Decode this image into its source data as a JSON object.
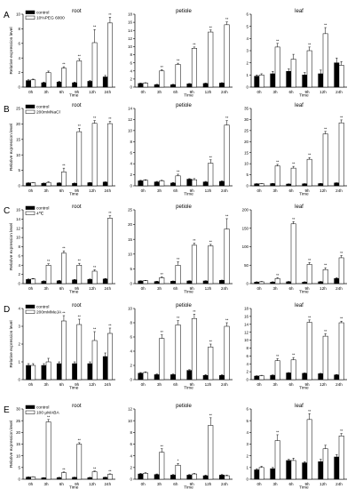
{
  "figure": {
    "ylabel": "Relative expression level",
    "xlabel": "Time",
    "categories": [
      "0h",
      "3h",
      "6h",
      "9h",
      "12h",
      "24h"
    ]
  },
  "chart_data": [
    {
      "type": "bar",
      "row_label": "A",
      "title": "root",
      "ylim": [
        0,
        10
      ],
      "yticks": [
        0,
        2,
        4,
        6,
        8,
        10
      ],
      "legend": [
        "control",
        "10%PEG 6000"
      ],
      "categories": [
        "0h",
        "3h",
        "6h",
        "9h",
        "12h",
        "24h"
      ],
      "series": [
        {
          "name": "control",
          "values": [
            0.9,
            0.6,
            0.7,
            0.6,
            0.8,
            1.4
          ],
          "errors": [
            0.1,
            0.1,
            0.1,
            0.1,
            0.1,
            0.2
          ]
        },
        {
          "name": "10%PEG 6000",
          "values": [
            1.0,
            2.0,
            2.6,
            3.6,
            6.1,
            8.8
          ],
          "errors": [
            0.1,
            0.2,
            0.2,
            0.3,
            1.8,
            0.8
          ]
        }
      ],
      "annotations": [
        "",
        "",
        "**",
        "**",
        "**",
        "**"
      ]
    },
    {
      "type": "bar",
      "row_label": "A",
      "title": "petiole",
      "ylim": [
        0,
        18
      ],
      "yticks": [
        0,
        2,
        4,
        6,
        8,
        10,
        12,
        14,
        16,
        18
      ],
      "categories": [
        "0h",
        "3h",
        "6h",
        "9h",
        "12h",
        "24h"
      ],
      "series": [
        {
          "name": "control",
          "values": [
            0.9,
            0.6,
            0.6,
            0.8,
            0.9,
            1.0
          ],
          "errors": [
            0.1,
            0.1,
            0.1,
            0.1,
            0.1,
            0.1
          ]
        },
        {
          "name": "10%PEG 6000",
          "values": [
            1.0,
            4.0,
            5.6,
            9.6,
            13.6,
            15.4
          ],
          "errors": [
            0.1,
            0.3,
            0.3,
            0.3,
            0.5,
            0.7
          ]
        }
      ],
      "annotations": [
        "",
        "**",
        "**",
        "**",
        "**",
        "**"
      ]
    },
    {
      "type": "bar",
      "row_label": "A",
      "title": "leaf",
      "ylim": [
        0,
        6
      ],
      "yticks": [
        0,
        1,
        2,
        3,
        4,
        5,
        6
      ],
      "categories": [
        "0h",
        "3h",
        "6h",
        "9h",
        "12h",
        "24h"
      ],
      "series": [
        {
          "name": "control",
          "values": [
            0.9,
            1.1,
            1.3,
            1.0,
            1.1,
            2.0
          ],
          "errors": [
            0.1,
            0.2,
            0.2,
            0.2,
            0.3,
            0.4
          ]
        },
        {
          "name": "10%PEG 6000",
          "values": [
            1.0,
            3.3,
            2.3,
            3.0,
            4.4,
            1.8
          ],
          "errors": [
            0.1,
            0.3,
            0.4,
            0.3,
            0.5,
            0.3
          ]
        }
      ],
      "annotations": [
        "",
        "**",
        "",
        "**",
        "**",
        ""
      ]
    },
    {
      "type": "bar",
      "row_label": "B",
      "title": "root",
      "ylim": [
        0,
        25
      ],
      "yticks": [
        0,
        5,
        10,
        15,
        20,
        25
      ],
      "legend": [
        "control",
        "200mMNaCl"
      ],
      "categories": [
        "0h",
        "3h",
        "6h",
        "9h",
        "12h",
        "24h"
      ],
      "series": [
        {
          "name": "control",
          "values": [
            0.9,
            0.8,
            0.9,
            0.8,
            1.0,
            1.2
          ],
          "errors": [
            0.1,
            0.1,
            0.1,
            0.1,
            0.1,
            0.1
          ]
        },
        {
          "name": "200mMNaCl",
          "values": [
            1.0,
            1.1,
            4.5,
            17.5,
            20.2,
            20.1
          ],
          "errors": [
            0.1,
            0.2,
            1.2,
            1.1,
            0.9,
            0.7
          ]
        }
      ],
      "annotations": [
        "",
        "",
        "**",
        "**",
        "**",
        "**"
      ]
    },
    {
      "type": "bar",
      "row_label": "B",
      "title": "petiole",
      "ylim": [
        0,
        14
      ],
      "yticks": [
        0,
        2,
        4,
        6,
        8,
        10,
        12,
        14
      ],
      "categories": [
        "0h",
        "3h",
        "6h",
        "9h",
        "12h",
        "24h"
      ],
      "series": [
        {
          "name": "control",
          "values": [
            0.9,
            0.7,
            0.5,
            1.2,
            0.7,
            0.8
          ],
          "errors": [
            0.1,
            0.1,
            0.1,
            0.1,
            0.1,
            0.1
          ]
        },
        {
          "name": "200mMNaCl",
          "values": [
            1.0,
            0.9,
            1.8,
            1.1,
            4.1,
            11.0
          ],
          "errors": [
            0.1,
            0.1,
            0.3,
            0.2,
            0.6,
            0.8
          ]
        }
      ],
      "annotations": [
        "",
        "",
        "**",
        "",
        "**",
        "**"
      ]
    },
    {
      "type": "bar",
      "row_label": "B",
      "title": "leaf",
      "ylim": [
        0,
        35
      ],
      "yticks": [
        0,
        5,
        10,
        15,
        20,
        25,
        30,
        35
      ],
      "categories": [
        "0h",
        "3h",
        "6h",
        "9h",
        "12h",
        "24h"
      ],
      "series": [
        {
          "name": "control",
          "values": [
            0.9,
            1.0,
            0.8,
            0.9,
            1.0,
            1.3
          ],
          "errors": [
            0.1,
            0.1,
            0.1,
            0.1,
            0.1,
            0.1
          ]
        },
        {
          "name": "200mMNaCl",
          "values": [
            1.0,
            9.0,
            8.0,
            12.0,
            23.5,
            28.5
          ],
          "errors": [
            0.1,
            0.7,
            0.8,
            0.8,
            1.1,
            1.3
          ]
        }
      ],
      "annotations": [
        "",
        "**",
        "**",
        "**",
        "**",
        "**"
      ]
    },
    {
      "type": "bar",
      "row_label": "C",
      "title": "root",
      "ylim": [
        0,
        16
      ],
      "yticks": [
        0,
        2,
        4,
        6,
        8,
        10,
        12,
        14,
        16
      ],
      "legend": [
        "control",
        "4℃"
      ],
      "categories": [
        "0h",
        "3h",
        "6h",
        "9h",
        "12h",
        "24h"
      ],
      "series": [
        {
          "name": "control",
          "values": [
            0.9,
            0.5,
            0.6,
            0.8,
            0.9,
            1.0
          ],
          "errors": [
            0.1,
            0.1,
            0.1,
            0.1,
            0.1,
            0.1
          ]
        },
        {
          "name": "4℃",
          "values": [
            1.0,
            4.0,
            6.6,
            4.0,
            2.7,
            14.2
          ],
          "errors": [
            0.1,
            0.3,
            0.5,
            0.4,
            0.3,
            0.5
          ]
        }
      ],
      "annotations": [
        "",
        "**",
        "**",
        "**",
        "**",
        "**"
      ]
    },
    {
      "type": "bar",
      "row_label": "C",
      "title": "petiole",
      "ylim": [
        0,
        25
      ],
      "yticks": [
        0,
        5,
        10,
        15,
        20,
        25
      ],
      "categories": [
        "0h",
        "3h",
        "6h",
        "9h",
        "12h",
        "24h"
      ],
      "series": [
        {
          "name": "control",
          "values": [
            0.9,
            0.7,
            0.8,
            0.9,
            0.9,
            1.1
          ],
          "errors": [
            0.1,
            0.1,
            0.1,
            0.1,
            0.1,
            0.1
          ]
        },
        {
          "name": "4℃",
          "values": [
            1.0,
            2.0,
            6.2,
            13.0,
            12.8,
            18.5
          ],
          "errors": [
            0.1,
            0.3,
            1.2,
            0.7,
            0.5,
            3.5
          ]
        }
      ],
      "annotations": [
        "",
        "**",
        "**",
        "**",
        "**",
        "**"
      ]
    },
    {
      "type": "bar",
      "row_label": "C",
      "title": "leaf",
      "ylim": [
        0,
        200
      ],
      "yticks": [
        0,
        50,
        100,
        150,
        200
      ],
      "categories": [
        "0h",
        "3h",
        "6h",
        "9h",
        "12h",
        "24h"
      ],
      "series": [
        {
          "name": "control",
          "values": [
            4,
            4,
            5,
            4,
            5,
            14
          ],
          "errors": [
            1,
            1,
            1,
            1,
            1,
            2
          ]
        },
        {
          "name": "4℃",
          "values": [
            5,
            14,
            162,
            52,
            38,
            70
          ],
          "errors": [
            1,
            2,
            6,
            5,
            5,
            6
          ]
        }
      ],
      "annotations": [
        "",
        "**",
        "**",
        "**",
        "**",
        "**"
      ]
    },
    {
      "type": "bar",
      "row_label": "D",
      "title": "root",
      "ylim": [
        0,
        4
      ],
      "yticks": [
        0,
        1,
        2,
        3,
        4
      ],
      "legend": [
        "control",
        "200mMMeJA"
      ],
      "categories": [
        "0h",
        "3h",
        "6h",
        "9h",
        "12h",
        "24h"
      ],
      "series": [
        {
          "name": "control",
          "values": [
            0.8,
            0.8,
            0.9,
            0.9,
            0.9,
            1.3
          ],
          "errors": [
            0.1,
            0.1,
            0.1,
            0.1,
            0.1,
            0.2
          ]
        },
        {
          "name": "200mMMeJA",
          "values": [
            0.8,
            1.0,
            3.3,
            3.1,
            2.2,
            2.6
          ],
          "errors": [
            0.1,
            0.2,
            0.3,
            0.3,
            0.5,
            0.3
          ]
        }
      ],
      "annotations": [
        "",
        "",
        "**",
        "**",
        "**",
        "**"
      ]
    },
    {
      "type": "bar",
      "row_label": "D",
      "title": "petiole",
      "ylim": [
        0,
        10
      ],
      "yticks": [
        0,
        2,
        4,
        6,
        8,
        10
      ],
      "categories": [
        "0h",
        "3h",
        "6h",
        "9h",
        "12h",
        "24h"
      ],
      "series": [
        {
          "name": "control",
          "values": [
            0.9,
            0.7,
            0.7,
            1.3,
            0.6,
            0.6
          ],
          "errors": [
            0.1,
            0.1,
            0.1,
            0.1,
            0.1,
            0.1
          ]
        },
        {
          "name": "200mMMeJA",
          "values": [
            1.0,
            5.8,
            7.7,
            8.6,
            4.6,
            7.5
          ],
          "errors": [
            0.1,
            0.5,
            0.6,
            0.6,
            0.4,
            0.5
          ]
        }
      ],
      "annotations": [
        "",
        "**",
        "**",
        "**",
        "**",
        "**"
      ]
    },
    {
      "type": "bar",
      "row_label": "D",
      "title": "leaf",
      "ylim": [
        0,
        18
      ],
      "yticks": [
        0,
        2,
        4,
        6,
        8,
        10,
        12,
        14,
        16,
        18
      ],
      "categories": [
        "0h",
        "3h",
        "6h",
        "9h",
        "12h",
        "24h"
      ],
      "series": [
        {
          "name": "control",
          "values": [
            0.9,
            1.1,
            1.7,
            1.6,
            1.5,
            1.2
          ],
          "errors": [
            0.1,
            0.1,
            0.1,
            0.1,
            0.1,
            0.1
          ]
        },
        {
          "name": "200mMMeJA",
          "values": [
            1.0,
            4.8,
            5.0,
            14.5,
            11.0,
            14.4
          ],
          "errors": [
            0.1,
            0.5,
            0.6,
            0.6,
            0.6,
            0.4
          ]
        }
      ],
      "annotations": [
        "",
        "**",
        "**",
        "**",
        "**",
        "**"
      ]
    },
    {
      "type": "bar",
      "row_label": "E",
      "title": "root",
      "ylim": [
        0,
        30
      ],
      "yticks": [
        0,
        5,
        10,
        15,
        20,
        25,
        30
      ],
      "legend": [
        "control",
        "100 μMABA"
      ],
      "categories": [
        "0h",
        "3h",
        "6h",
        "9h",
        "12h",
        "24h"
      ],
      "series": [
        {
          "name": "control",
          "values": [
            0.9,
            0.6,
            0.7,
            0.8,
            0.7,
            0.8
          ],
          "errors": [
            0.1,
            0.1,
            0.1,
            0.1,
            0.1,
            0.1
          ]
        },
        {
          "name": "100 μMABA",
          "values": [
            1.0,
            24.5,
            2.8,
            15.0,
            3.2,
            2.1
          ],
          "errors": [
            0.1,
            1.0,
            0.3,
            0.6,
            0.3,
            0.2
          ]
        }
      ],
      "annotations": [
        "",
        "**",
        "**",
        "**",
        "**",
        "**"
      ]
    },
    {
      "type": "bar",
      "row_label": "E",
      "title": "petiole",
      "ylim": [
        0,
        12
      ],
      "yticks": [
        0,
        2,
        4,
        6,
        8,
        10,
        12
      ],
      "categories": [
        "0h",
        "3h",
        "6h",
        "9h",
        "12h",
        "24h"
      ],
      "series": [
        {
          "name": "control",
          "values": [
            0.9,
            0.8,
            0.7,
            0.7,
            0.6,
            0.7
          ],
          "errors": [
            0.1,
            0.1,
            0.1,
            0.1,
            0.1,
            0.1
          ]
        },
        {
          "name": "100 μMABA",
          "values": [
            1.0,
            4.6,
            2.4,
            0.9,
            9.2,
            0.6
          ],
          "errors": [
            0.1,
            0.6,
            0.3,
            0.1,
            1.3,
            0.1
          ]
        }
      ],
      "annotations": [
        "",
        "**",
        "*",
        "",
        "**",
        ""
      ]
    },
    {
      "type": "bar",
      "row_label": "E",
      "title": "leaf",
      "ylim": [
        0,
        6
      ],
      "yticks": [
        0,
        1,
        2,
        3,
        4,
        5,
        6
      ],
      "categories": [
        "0h",
        "3h",
        "6h",
        "9h",
        "12h",
        "24h"
      ],
      "series": [
        {
          "name": "control",
          "values": [
            0.8,
            0.9,
            1.6,
            1.4,
            1.5,
            1.9
          ],
          "errors": [
            0.1,
            0.1,
            0.1,
            0.1,
            0.2,
            0.2
          ]
        },
        {
          "name": "100 μMABA",
          "values": [
            1.0,
            3.3,
            1.6,
            5.1,
            2.6,
            3.7
          ],
          "errors": [
            0.1,
            0.5,
            0.2,
            0.5,
            0.3,
            0.2
          ]
        }
      ],
      "annotations": [
        "",
        "**",
        "",
        "**",
        "",
        "**"
      ]
    }
  ]
}
